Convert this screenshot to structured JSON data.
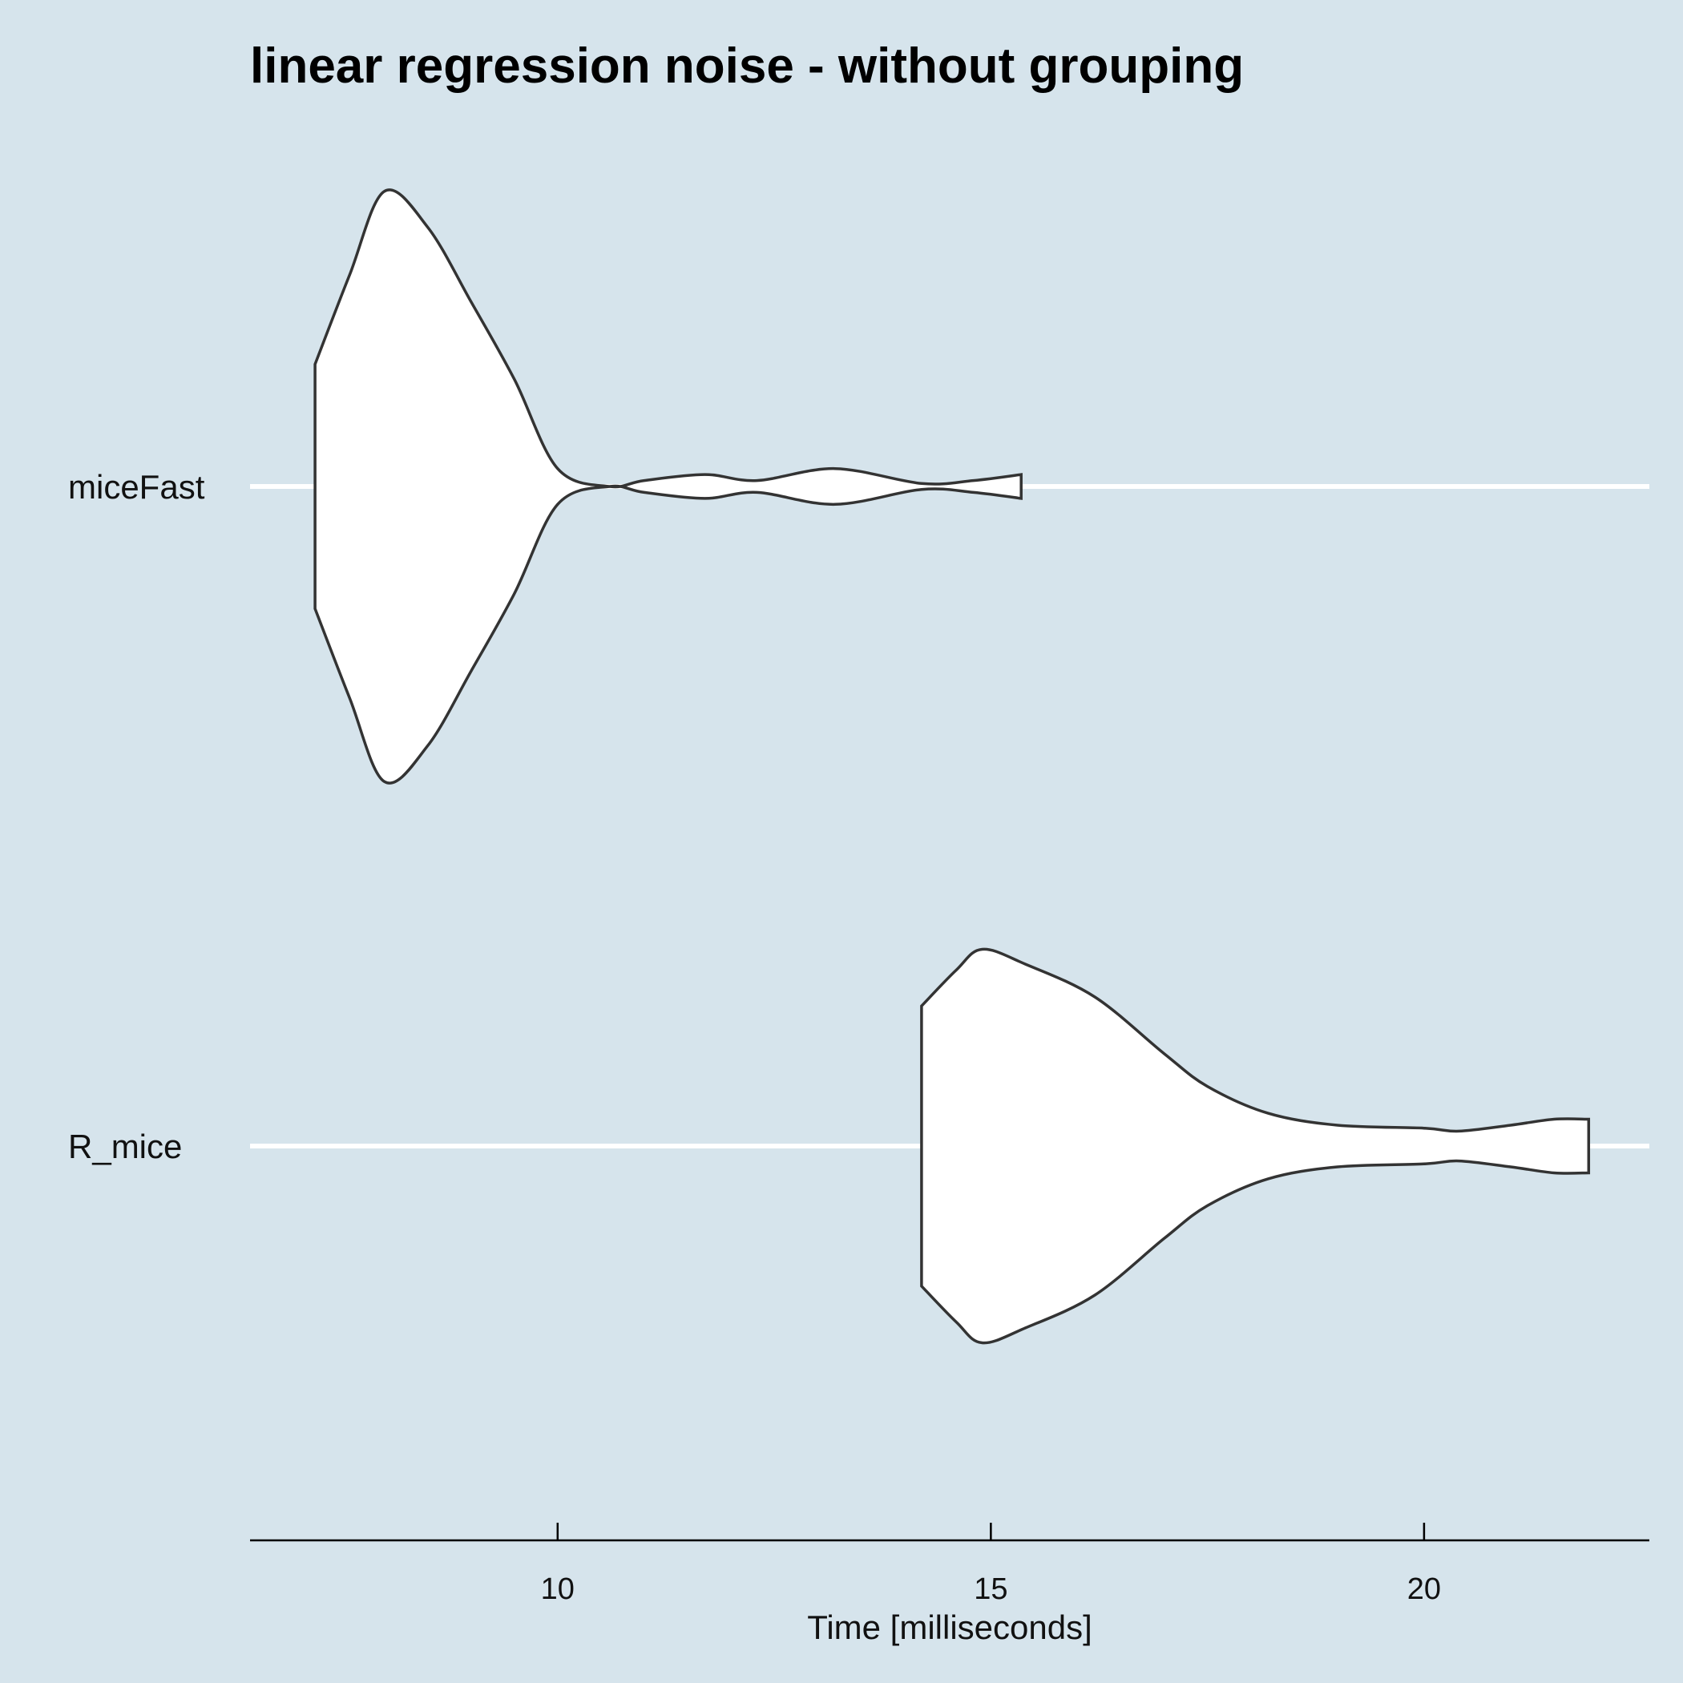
{
  "chart_data": {
    "type": "violin",
    "orientation": "horizontal",
    "title": "linear regression noise - without grouping",
    "xlabel": "Time [milliseconds]",
    "ylabel": "",
    "xlim": [
      6.45,
      22.6
    ],
    "xticks": [
      {
        "value": 10,
        "label": "10"
      },
      {
        "value": 15,
        "label": "15"
      },
      {
        "value": 20,
        "label": "20"
      }
    ],
    "grid": "horizontal gridlines at categories",
    "background_color": "#d6e4ec",
    "violin_fill": "#ffffff",
    "violin_stroke": "#333333",
    "categories": [
      "miceFast",
      "R_mice"
    ],
    "series": [
      {
        "category": "miceFast",
        "min": 7.2,
        "max": 15.35,
        "density": [
          [
            7.2,
            0.41
          ],
          [
            7.6,
            0.71
          ],
          [
            8.0,
            0.99
          ],
          [
            8.5,
            0.87
          ],
          [
            9.0,
            0.62
          ],
          [
            9.5,
            0.36
          ],
          [
            10.0,
            0.06
          ],
          [
            10.6,
            0.0
          ],
          [
            11.0,
            0.02
          ],
          [
            11.7,
            0.04
          ],
          [
            12.3,
            0.02
          ],
          [
            13.2,
            0.06
          ],
          [
            14.2,
            0.01
          ],
          [
            14.8,
            0.02
          ],
          [
            15.35,
            0.04
          ]
        ]
      },
      {
        "category": "R_mice",
        "min": 14.2,
        "max": 21.9,
        "density": [
          [
            14.2,
            0.47
          ],
          [
            14.6,
            0.59
          ],
          [
            14.9,
            0.66
          ],
          [
            15.4,
            0.61
          ],
          [
            16.2,
            0.5
          ],
          [
            17.0,
            0.31
          ],
          [
            17.5,
            0.2
          ],
          [
            18.2,
            0.11
          ],
          [
            19.0,
            0.07
          ],
          [
            20.0,
            0.06
          ],
          [
            20.4,
            0.05
          ],
          [
            21.0,
            0.07
          ],
          [
            21.5,
            0.09
          ],
          [
            21.9,
            0.09
          ]
        ]
      }
    ]
  }
}
